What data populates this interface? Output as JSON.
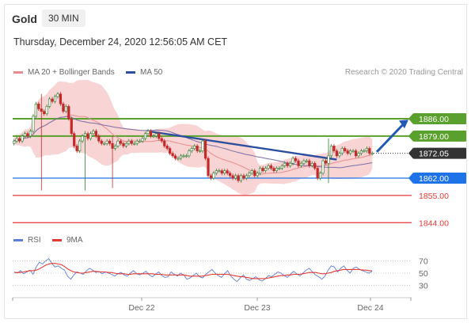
{
  "header": {
    "instrument": "Gold",
    "timeframe": "30 MIN",
    "datetime": "Thursday, December 24, 2020 12:56:05 AM CET",
    "legend_ma": "MA 20 + Bollinger Bands",
    "legend_ma50": "MA 50",
    "credit": "Research © 2020 Trading Central",
    "legend_rsi": "RSI",
    "legend_9ma": "9MA"
  },
  "colors": {
    "up": "#2e7d32",
    "down": "#c62828",
    "resistance": "#5aa02c",
    "support": "#1e73e8",
    "stop": "#e53935",
    "trendline": "#2b4f9e",
    "bollinger": "#f5c6c6",
    "ma20": "#e88d8d",
    "ma50": "#7a6fa5",
    "current": "#333333",
    "rsi": "#5b7fd4",
    "rsi_ma": "#e53935"
  },
  "chart_data": [
    {
      "type": "candlestick",
      "title": "Gold",
      "x_ticks": [
        "Dec 22",
        "Dec 23",
        "Dec 24"
      ],
      "ylim": [
        1838,
        1902
      ],
      "levels": [
        {
          "value": 1886.0,
          "label": "1886.00",
          "kind": "resistance"
        },
        {
          "value": 1879.0,
          "label": "1879.00",
          "kind": "resistance"
        },
        {
          "value": 1872.05,
          "label": "1872.05",
          "kind": "current"
        },
        {
          "value": 1862.0,
          "label": "1862.00",
          "kind": "support"
        },
        {
          "value": 1855.0,
          "label": "1855.00",
          "kind": "stop"
        },
        {
          "value": 1844.0,
          "label": "1844.00",
          "kind": "stop"
        }
      ],
      "close": [
        1877,
        1878,
        1877,
        1879,
        1880,
        1879,
        1881,
        1887,
        1892,
        1890,
        1889,
        1888,
        1891,
        1894,
        1893,
        1895,
        1896,
        1892,
        1889,
        1891,
        1886,
        1880,
        1875,
        1873,
        1877,
        1879,
        1880,
        1878,
        1880,
        1881,
        1879,
        1877,
        1876,
        1876,
        1877,
        1876,
        1874,
        1875,
        1877,
        1876,
        1875,
        1876,
        1877,
        1876,
        1876,
        1877,
        1877,
        1878,
        1880,
        1881,
        1879,
        1879,
        1880,
        1878,
        1877,
        1875,
        1874,
        1872,
        1871,
        1870,
        1870,
        1871,
        1871,
        1871,
        1873,
        1874,
        1875,
        1873,
        1873,
        1877,
        1870,
        1863,
        1862,
        1864,
        1865,
        1865,
        1864,
        1865,
        1864,
        1863,
        1862,
        1863,
        1861,
        1863,
        1862,
        1863,
        1864,
        1865,
        1863,
        1864,
        1866,
        1865,
        1866,
        1867,
        1866,
        1865,
        1866,
        1866,
        1867,
        1868,
        1867,
        1868,
        1870,
        1869,
        1867,
        1868,
        1869,
        1869,
        1867,
        1868,
        1866,
        1862,
        1864,
        1869,
        1868,
        1871,
        1875,
        1873,
        1871,
        1872,
        1874,
        1873,
        1872,
        1873,
        1873,
        1871,
        1872,
        1873,
        1873,
        1874,
        1872,
        1872
      ],
      "events": [
        {
          "index": 10,
          "high": 1896,
          "low": 1857
        },
        {
          "index": 26,
          "high": 1881,
          "low": 1857
        },
        {
          "index": 36,
          "high": 1879,
          "low": 1858
        },
        {
          "index": 115,
          "high": 1878,
          "low": 1860
        }
      ],
      "forecast_arrow": {
        "from": 1872.6,
        "to": 1885.6
      }
    },
    {
      "type": "line",
      "title": "RSI",
      "ylim": [
        20,
        80
      ],
      "y_ticks": [
        70,
        50,
        30
      ],
      "series": [
        {
          "name": "RSI",
          "values": [
            52,
            50,
            54,
            49,
            52,
            55,
            48,
            60,
            68,
            65,
            70,
            74,
            66,
            60,
            62,
            58,
            55,
            45,
            40,
            47,
            52,
            50,
            48,
            54,
            58,
            55,
            51,
            53,
            49,
            52,
            50,
            48,
            45,
            49,
            51,
            47,
            45,
            50,
            54,
            49,
            47,
            50,
            53,
            47,
            44,
            48,
            52,
            46,
            43,
            44,
            52,
            48,
            45,
            50,
            47,
            40,
            42,
            46,
            50,
            44,
            42,
            48,
            52,
            56,
            50,
            46,
            43,
            49,
            54,
            45,
            40,
            36,
            42,
            47,
            40,
            38,
            41,
            44,
            39,
            37,
            41,
            46,
            44,
            48,
            52,
            50,
            46,
            43,
            48,
            53,
            49,
            45,
            50,
            55,
            58,
            52,
            47,
            44,
            40,
            45,
            55,
            62,
            60,
            52,
            58,
            62,
            55,
            50,
            58,
            60,
            56,
            54,
            52,
            50,
            53
          ]
        },
        {
          "name": "9MA",
          "values": [
            51,
            51,
            51,
            52,
            53,
            54,
            54,
            55,
            57,
            60,
            63,
            65,
            66,
            66,
            65,
            64,
            61,
            57,
            54,
            52,
            51,
            50,
            50,
            51,
            52,
            53,
            53,
            52,
            52,
            52,
            51,
            51,
            50,
            49,
            49,
            49,
            48,
            48,
            49,
            49,
            49,
            49,
            49,
            49,
            49,
            48,
            48,
            48,
            47,
            47,
            47,
            47,
            47,
            47,
            47,
            46,
            45,
            45,
            45,
            45,
            45,
            46,
            47,
            48,
            48,
            48,
            48,
            48,
            48,
            47,
            46,
            45,
            44,
            44,
            43,
            42,
            41,
            41,
            41,
            41,
            41,
            42,
            43,
            44,
            45,
            46,
            46,
            47,
            47,
            48,
            48,
            48,
            49,
            50,
            51,
            51,
            51,
            50,
            49,
            49,
            50,
            51,
            53,
            54,
            55,
            56,
            56,
            56,
            56,
            56,
            56,
            55,
            55,
            54,
            54
          ]
        }
      ]
    }
  ]
}
